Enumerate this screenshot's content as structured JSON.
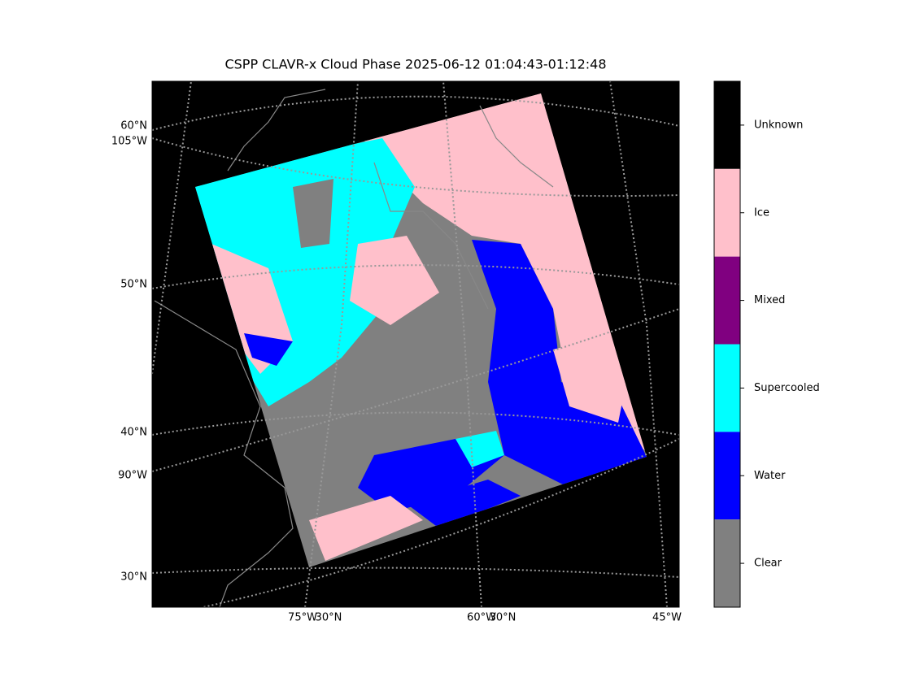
{
  "title": "CSPP CLAVR-x Cloud Phase 2025-06-12 01:04:43-01:12:48",
  "map": {
    "left_labels": [
      "60°N",
      "105°W",
      "50°N",
      "40°N",
      "90°W",
      "30°N"
    ],
    "bottom_labels": [
      "75°W",
      "30°N",
      "60°W",
      "30°N",
      "45°W"
    ]
  },
  "colorbar": {
    "classes": [
      {
        "name": "Unknown",
        "color": "#000000"
      },
      {
        "name": "Ice",
        "color": "#ffc0cb"
      },
      {
        "name": "Mixed",
        "color": "#800080"
      },
      {
        "name": "Supercooled",
        "color": "#00ffff"
      },
      {
        "name": "Water",
        "color": "#0000ff"
      },
      {
        "name": "Clear",
        "color": "#808080"
      }
    ]
  }
}
